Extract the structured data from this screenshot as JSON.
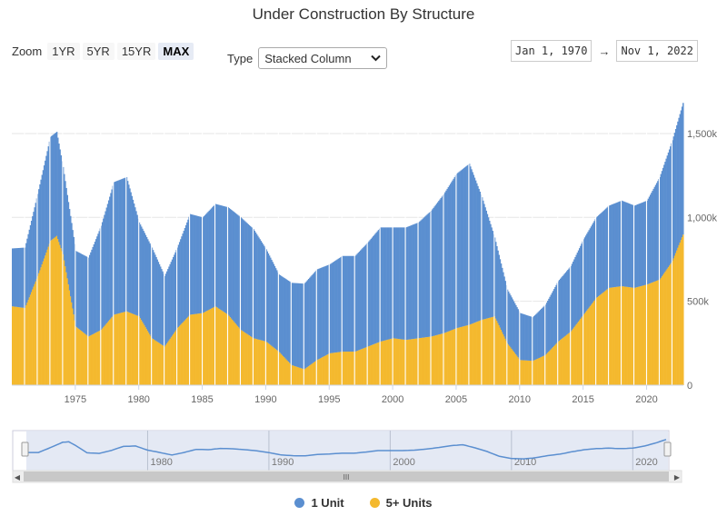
{
  "title": "Under Construction By Structure",
  "zoom": {
    "label": "Zoom",
    "buttons": [
      "1YR",
      "5YR",
      "15YR",
      "MAX"
    ],
    "active": "MAX"
  },
  "type_selector": {
    "label": "Type",
    "value": "Stacked Column",
    "chevron": "chevron-down-icon"
  },
  "range": {
    "from": "Jan 1, 1970",
    "arrow": "→",
    "to": "Nov 1, 2022"
  },
  "navigator": {
    "tick_labels": [
      "1980",
      "1990",
      "2000",
      "2010",
      "2020"
    ],
    "grip_label": "III"
  },
  "chart_data": {
    "type": "bar",
    "stacked": true,
    "title": "Under Construction By Structure",
    "xlabel": "",
    "ylabel": "",
    "x_range": [
      1970,
      2022.9
    ],
    "ylim": [
      0,
      1700
    ],
    "y_unit": "k",
    "y_ticks": [
      0,
      500,
      1000,
      1500
    ],
    "y_tick_labels": [
      "0",
      "500k",
      "1,000k",
      "1,500k"
    ],
    "x_ticks": [
      1975,
      1980,
      1985,
      1990,
      1995,
      2000,
      2005,
      2010,
      2015,
      2020
    ],
    "x_tick_labels": [
      "1975",
      "1980",
      "1985",
      "1990",
      "1995",
      "2000",
      "2005",
      "2010",
      "2015",
      "2020"
    ],
    "grid": true,
    "legend_position": "bottom-center",
    "series": [
      {
        "name": "1 Unit",
        "color": "#5b8fd0",
        "points": [
          [
            1970,
            345
          ],
          [
            1971,
            360
          ],
          [
            1972,
            490
          ],
          [
            1973,
            620
          ],
          [
            1973.5,
            620
          ],
          [
            1974,
            520
          ],
          [
            1975,
            450
          ],
          [
            1976,
            470
          ],
          [
            1977,
            620
          ],
          [
            1978,
            790
          ],
          [
            1979,
            800
          ],
          [
            1980,
            560
          ],
          [
            1981,
            540
          ],
          [
            1982,
            420
          ],
          [
            1983,
            480
          ],
          [
            1984,
            600
          ],
          [
            1985,
            570
          ],
          [
            1986,
            610
          ],
          [
            1987,
            640
          ],
          [
            1988,
            670
          ],
          [
            1989,
            650
          ],
          [
            1990,
            550
          ],
          [
            1991,
            460
          ],
          [
            1992,
            490
          ],
          [
            1993,
            510
          ],
          [
            1994,
            540
          ],
          [
            1995,
            530
          ],
          [
            1996,
            570
          ],
          [
            1997,
            570
          ],
          [
            1998,
            620
          ],
          [
            1999,
            680
          ],
          [
            2000,
            660
          ],
          [
            2001,
            670
          ],
          [
            2002,
            690
          ],
          [
            2003,
            750
          ],
          [
            2004,
            830
          ],
          [
            2005,
            920
          ],
          [
            2006,
            960
          ],
          [
            2007,
            730
          ],
          [
            2008,
            470
          ],
          [
            2009,
            320
          ],
          [
            2010,
            280
          ],
          [
            2011,
            260
          ],
          [
            2012,
            300
          ],
          [
            2013,
            360
          ],
          [
            2014,
            390
          ],
          [
            2015,
            450
          ],
          [
            2016,
            480
          ],
          [
            2017,
            490
          ],
          [
            2018,
            510
          ],
          [
            2019,
            490
          ],
          [
            2020,
            500
          ],
          [
            2021,
            610
          ],
          [
            2022,
            720
          ],
          [
            2022.9,
            790
          ]
        ]
      },
      {
        "name": "5+ Units",
        "color": "#f4b92e",
        "points": [
          [
            1970,
            470
          ],
          [
            1971,
            460
          ],
          [
            1972,
            650
          ],
          [
            1973,
            860
          ],
          [
            1973.5,
            890
          ],
          [
            1974,
            780
          ],
          [
            1975,
            350
          ],
          [
            1976,
            290
          ],
          [
            1977,
            330
          ],
          [
            1978,
            420
          ],
          [
            1979,
            440
          ],
          [
            1980,
            410
          ],
          [
            1981,
            280
          ],
          [
            1982,
            230
          ],
          [
            1983,
            340
          ],
          [
            1984,
            420
          ],
          [
            1985,
            430
          ],
          [
            1986,
            470
          ],
          [
            1987,
            420
          ],
          [
            1988,
            330
          ],
          [
            1989,
            280
          ],
          [
            1990,
            260
          ],
          [
            1991,
            200
          ],
          [
            1992,
            120
          ],
          [
            1993,
            95
          ],
          [
            1994,
            150
          ],
          [
            1995,
            190
          ],
          [
            1996,
            200
          ],
          [
            1997,
            200
          ],
          [
            1998,
            230
          ],
          [
            1999,
            260
          ],
          [
            2000,
            280
          ],
          [
            2001,
            270
          ],
          [
            2002,
            280
          ],
          [
            2003,
            290
          ],
          [
            2004,
            310
          ],
          [
            2005,
            340
          ],
          [
            2006,
            360
          ],
          [
            2007,
            390
          ],
          [
            2008,
            410
          ],
          [
            2009,
            250
          ],
          [
            2010,
            150
          ],
          [
            2011,
            145
          ],
          [
            2012,
            180
          ],
          [
            2013,
            260
          ],
          [
            2014,
            320
          ],
          [
            2015,
            420
          ],
          [
            2016,
            520
          ],
          [
            2017,
            580
          ],
          [
            2018,
            590
          ],
          [
            2019,
            580
          ],
          [
            2020,
            600
          ],
          [
            2021,
            630
          ],
          [
            2022,
            740
          ],
          [
            2022.9,
            910
          ]
        ]
      }
    ]
  },
  "legend": [
    {
      "label": "1 Unit",
      "color": "#5b8fd0"
    },
    {
      "label": "5+ Units",
      "color": "#f4b92e"
    }
  ]
}
